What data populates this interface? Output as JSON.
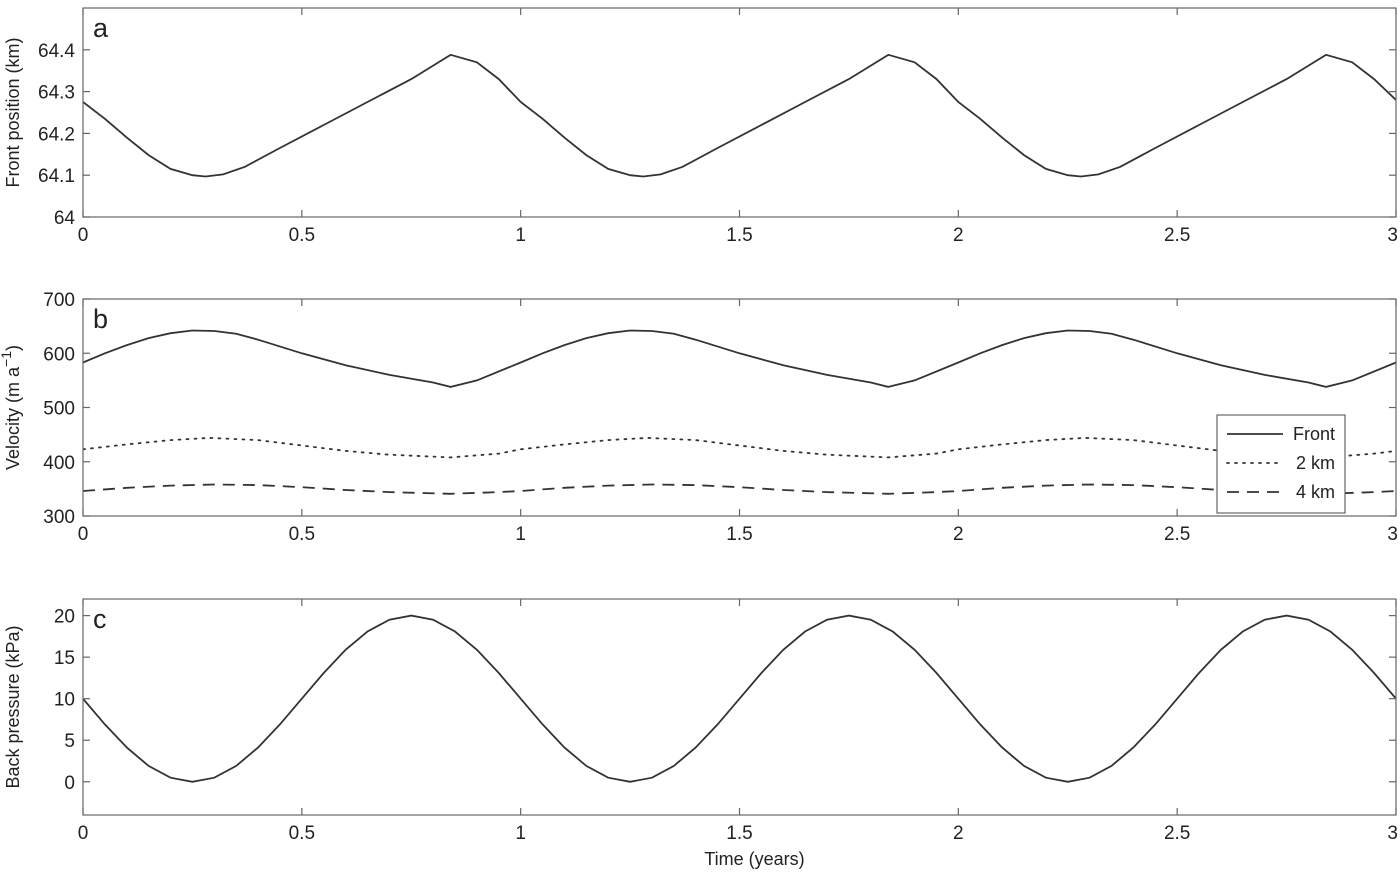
{
  "chart_data": [
    {
      "type": "line",
      "panel_label": "a",
      "xlabel": "",
      "ylabel": "Front position (km)",
      "xlim": [
        0,
        3
      ],
      "ylim": [
        64,
        64.5
      ],
      "xticks": [
        0,
        0.5,
        1,
        1.5,
        2,
        2.5,
        3
      ],
      "xtick_labels": [
        "0",
        "0.5",
        "1",
        "1.5",
        "2",
        "2.5",
        "3"
      ],
      "yticks": [
        64,
        64.1,
        64.2,
        64.3,
        64.4
      ],
      "ytick_labels": [
        "64",
        "64.1",
        "64.2",
        "64.3",
        "64.4"
      ],
      "grid": false,
      "series": [
        {
          "style": "solid",
          "x": [
            0,
            0.05,
            0.1,
            0.15,
            0.2,
            0.25,
            0.28,
            0.32,
            0.37,
            0.45,
            0.55,
            0.65,
            0.75,
            0.84,
            0.9,
            0.95,
            1.0,
            1.05,
            1.1,
            1.15,
            1.2,
            1.25,
            1.28,
            1.32,
            1.37,
            1.45,
            1.55,
            1.65,
            1.75,
            1.84,
            1.9,
            1.95,
            2.0,
            2.05,
            2.1,
            2.15,
            2.2,
            2.25,
            2.28,
            2.32,
            2.37,
            2.45,
            2.55,
            2.65,
            2.75,
            2.84,
            2.9,
            2.95,
            3.0
          ],
          "y": [
            64.275,
            64.235,
            64.19,
            64.148,
            64.115,
            64.1,
            64.097,
            64.102,
            64.12,
            64.165,
            64.22,
            64.275,
            64.33,
            64.388,
            64.37,
            64.33,
            64.275,
            64.235,
            64.19,
            64.148,
            64.115,
            64.1,
            64.097,
            64.102,
            64.12,
            64.165,
            64.22,
            64.275,
            64.33,
            64.388,
            64.37,
            64.33,
            64.275,
            64.235,
            64.19,
            64.148,
            64.115,
            64.1,
            64.097,
            64.102,
            64.12,
            64.165,
            64.22,
            64.275,
            64.33,
            64.388,
            64.37,
            64.33,
            64.28
          ]
        }
      ]
    },
    {
      "type": "line",
      "panel_label": "b",
      "xlabel": "",
      "ylabel": "Velocity (m a",
      "ylabel_sup": "−1",
      "ylabel_close": ")",
      "xlim": [
        0,
        3
      ],
      "ylim": [
        300,
        700
      ],
      "xticks": [
        0,
        0.5,
        1,
        1.5,
        2,
        2.5,
        3
      ],
      "xtick_labels": [
        "0",
        "0.5",
        "1",
        "1.5",
        "2",
        "2.5",
        "3"
      ],
      "yticks": [
        300,
        400,
        500,
        600,
        700
      ],
      "ytick_labels": [
        "300",
        "400",
        "500",
        "600",
        "700"
      ],
      "grid": false,
      "legend_position": "lower-right",
      "series": [
        {
          "name": "Front",
          "style": "solid",
          "x": [
            0,
            0.05,
            0.1,
            0.15,
            0.2,
            0.25,
            0.3,
            0.35,
            0.4,
            0.5,
            0.6,
            0.7,
            0.8,
            0.84,
            0.9,
            1.0,
            1.05,
            1.1,
            1.15,
            1.2,
            1.25,
            1.3,
            1.35,
            1.4,
            1.5,
            1.6,
            1.7,
            1.8,
            1.84,
            1.9,
            2.0,
            2.05,
            2.1,
            2.15,
            2.2,
            2.25,
            2.3,
            2.35,
            2.4,
            2.5,
            2.6,
            2.7,
            2.8,
            2.84,
            2.9,
            3.0
          ],
          "y": [
            583,
            600,
            615,
            628,
            637,
            642,
            641,
            636,
            625,
            600,
            578,
            560,
            546,
            538,
            550,
            583,
            600,
            615,
            628,
            637,
            642,
            641,
            636,
            625,
            600,
            578,
            560,
            546,
            538,
            550,
            583,
            600,
            615,
            628,
            637,
            642,
            641,
            636,
            625,
            600,
            578,
            560,
            546,
            538,
            550,
            583
          ]
        },
        {
          "name": "2 km",
          "style": "dotted",
          "x": [
            0,
            0.1,
            0.2,
            0.29,
            0.4,
            0.5,
            0.6,
            0.7,
            0.84,
            0.95,
            1.0,
            1.1,
            1.2,
            1.29,
            1.4,
            1.5,
            1.6,
            1.7,
            1.84,
            1.95,
            2.0,
            2.1,
            2.2,
            2.29,
            2.4,
            2.5,
            2.6,
            2.7,
            2.84,
            2.95,
            3.0
          ],
          "y": [
            423,
            432,
            440,
            444,
            440,
            430,
            420,
            413,
            408,
            415,
            423,
            432,
            440,
            444,
            440,
            430,
            420,
            413,
            408,
            415,
            423,
            432,
            440,
            444,
            440,
            430,
            420,
            413,
            408,
            415,
            420
          ]
        },
        {
          "name": "4 km",
          "style": "dashed",
          "x": [
            0,
            0.1,
            0.2,
            0.3,
            0.4,
            0.5,
            0.6,
            0.7,
            0.84,
            0.95,
            1.0,
            1.1,
            1.2,
            1.3,
            1.4,
            1.5,
            1.6,
            1.7,
            1.84,
            1.95,
            2.0,
            2.1,
            2.2,
            2.3,
            2.4,
            2.5,
            2.6,
            2.7,
            2.84,
            2.95,
            3.0
          ],
          "y": [
            346,
            352,
            356,
            358,
            357,
            353,
            348,
            344,
            341,
            344,
            346,
            352,
            356,
            358,
            357,
            353,
            348,
            344,
            341,
            344,
            346,
            352,
            356,
            358,
            357,
            353,
            348,
            344,
            341,
            344,
            346
          ]
        }
      ]
    },
    {
      "type": "line",
      "panel_label": "c",
      "xlabel": "Time (years)",
      "ylabel": "Back pressure (kPa)",
      "xlim": [
        0,
        3
      ],
      "ylim": [
        -4,
        22
      ],
      "xticks": [
        0,
        0.5,
        1,
        1.5,
        2,
        2.5,
        3
      ],
      "xtick_labels": [
        "0",
        "0.5",
        "1",
        "1.5",
        "2",
        "2.5",
        "3"
      ],
      "yticks": [
        0,
        5,
        10,
        15,
        20
      ],
      "ytick_labels": [
        "0",
        "5",
        "10",
        "15",
        "20"
      ],
      "grid": false,
      "series": [
        {
          "style": "solid",
          "x": [
            0,
            0.05,
            0.1,
            0.15,
            0.2,
            0.25,
            0.3,
            0.35,
            0.4,
            0.45,
            0.5,
            0.55,
            0.6,
            0.65,
            0.7,
            0.75,
            0.8,
            0.85,
            0.9,
            0.95,
            1.0,
            1.05,
            1.1,
            1.15,
            1.2,
            1.25,
            1.3,
            1.35,
            1.4,
            1.45,
            1.5,
            1.55,
            1.6,
            1.65,
            1.7,
            1.75,
            1.8,
            1.85,
            1.9,
            1.95,
            2.0,
            2.05,
            2.1,
            2.15,
            2.2,
            2.25,
            2.3,
            2.35,
            2.4,
            2.45,
            2.5,
            2.55,
            2.6,
            2.65,
            2.7,
            2.75,
            2.8,
            2.85,
            2.9,
            2.95,
            3.0
          ],
          "y": [
            10,
            6.91,
            4.12,
            1.91,
            0.49,
            0,
            0.49,
            1.91,
            4.12,
            6.91,
            10,
            13.09,
            15.88,
            18.09,
            19.51,
            20,
            19.51,
            18.09,
            15.88,
            13.09,
            10,
            6.91,
            4.12,
            1.91,
            0.49,
            0,
            0.49,
            1.91,
            4.12,
            6.91,
            10,
            13.09,
            15.88,
            18.09,
            19.51,
            20,
            19.51,
            18.09,
            15.88,
            13.09,
            10,
            6.91,
            4.12,
            1.91,
            0.49,
            0,
            0.49,
            1.91,
            4.12,
            6.91,
            10,
            13.09,
            15.88,
            18.09,
            19.51,
            20,
            19.51,
            18.09,
            15.88,
            13.09,
            10
          ]
        }
      ]
    }
  ]
}
